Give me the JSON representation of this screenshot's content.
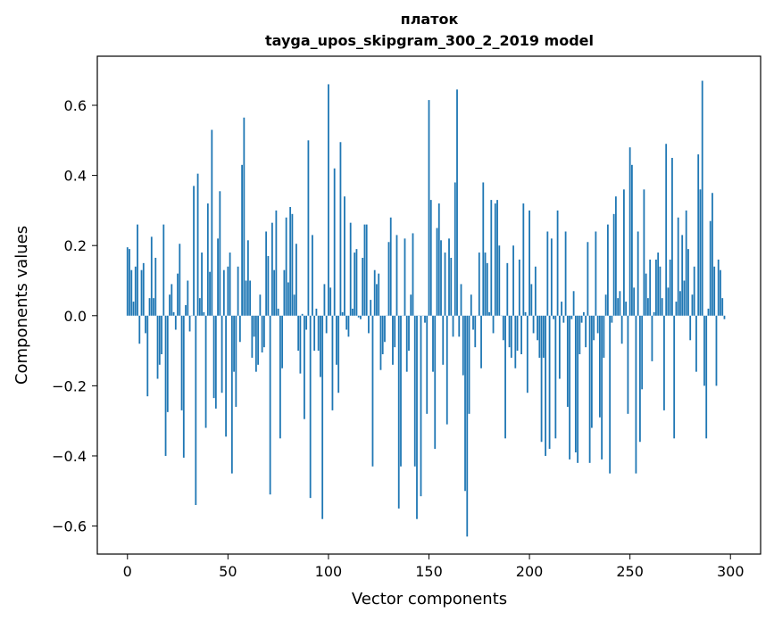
{
  "chart_data": {
    "type": "bar",
    "title": "платок",
    "subtitle": "tayga_upos_skipgram_300_2_2019 model",
    "xlabel": "Vector components",
    "ylabel": "Components values",
    "xlim": [
      -15,
      315
    ],
    "ylim": [
      -0.68,
      0.74
    ],
    "bar_color": "#1f77b4",
    "x_ticks": [
      {
        "value": 0,
        "label": "0"
      },
      {
        "value": 50,
        "label": "50"
      },
      {
        "value": 100,
        "label": "100"
      },
      {
        "value": 150,
        "label": "150"
      },
      {
        "value": 200,
        "label": "200"
      },
      {
        "value": 250,
        "label": "250"
      },
      {
        "value": 300,
        "label": "300"
      }
    ],
    "y_ticks": [
      {
        "value": -0.6,
        "label": "−0.6"
      },
      {
        "value": -0.4,
        "label": "−0.4"
      },
      {
        "value": -0.2,
        "label": "−0.2"
      },
      {
        "value": 0.0,
        "label": "0.0"
      },
      {
        "value": 0.2,
        "label": "0.2"
      },
      {
        "value": 0.4,
        "label": "0.4"
      },
      {
        "value": 0.6,
        "label": "0.6"
      }
    ],
    "values": [
      0.195,
      0.19,
      0.13,
      0.04,
      0.14,
      0.26,
      -0.08,
      0.13,
      0.15,
      -0.05,
      -0.23,
      0.05,
      0.225,
      0.05,
      0.165,
      -0.18,
      -0.14,
      -0.11,
      0.26,
      -0.4,
      -0.275,
      0.06,
      0.09,
      0.01,
      -0.04,
      0.12,
      0.205,
      -0.27,
      -0.405,
      0.03,
      0.1,
      -0.045,
      0.0,
      0.37,
      -0.54,
      0.405,
      0.05,
      0.18,
      0.01,
      -0.32,
      0.32,
      0.125,
      0.53,
      -0.235,
      -0.265,
      0.22,
      0.355,
      -0.22,
      0.13,
      -0.345,
      0.14,
      0.18,
      -0.45,
      -0.16,
      -0.26,
      0.14,
      -0.075,
      0.43,
      0.565,
      0.1,
      0.215,
      0.1,
      -0.12,
      -0.06,
      -0.16,
      -0.14,
      0.06,
      -0.105,
      -0.09,
      0.24,
      0.17,
      -0.51,
      0.265,
      0.13,
      0.3,
      0.02,
      -0.35,
      -0.15,
      0.13,
      0.28,
      0.095,
      0.31,
      0.29,
      0.06,
      0.205,
      -0.1,
      -0.165,
      0.005,
      -0.295,
      -0.04,
      0.5,
      -0.52,
      0.23,
      -0.1,
      0.02,
      -0.1,
      -0.175,
      -0.58,
      0.09,
      -0.05,
      0.66,
      0.08,
      -0.27,
      0.42,
      -0.14,
      -0.22,
      0.495,
      0.01,
      0.34,
      -0.04,
      -0.06,
      0.265,
      0.02,
      0.18,
      0.19,
      -0.005,
      -0.01,
      0.165,
      0.26,
      0.26,
      -0.05,
      0.045,
      -0.43,
      0.13,
      0.09,
      0.12,
      -0.155,
      -0.11,
      -0.075,
      0.0,
      0.21,
      0.28,
      -0.14,
      -0.09,
      0.23,
      -0.55,
      -0.43,
      0.0,
      0.22,
      -0.16,
      -0.1,
      0.06,
      0.235,
      -0.43,
      -0.58,
      0.0,
      -0.515,
      0.0,
      -0.02,
      -0.28,
      0.615,
      0.33,
      -0.16,
      -0.38,
      0.25,
      0.32,
      0.215,
      -0.14,
      0.18,
      -0.31,
      0.22,
      0.165,
      -0.06,
      0.38,
      0.645,
      -0.06,
      0.09,
      -0.17,
      -0.5,
      -0.63,
      -0.28,
      0.06,
      -0.04,
      -0.09,
      0.0,
      0.18,
      -0.15,
      0.38,
      0.18,
      0.15,
      0.01,
      0.33,
      -0.05,
      0.32,
      0.33,
      0.2,
      0.0,
      -0.07,
      -0.35,
      0.15,
      -0.09,
      -0.12,
      0.2,
      -0.15,
      -0.1,
      0.16,
      -0.11,
      0.32,
      0.01,
      -0.22,
      0.3,
      0.09,
      -0.05,
      0.14,
      -0.07,
      -0.12,
      -0.36,
      -0.12,
      -0.4,
      0.24,
      -0.38,
      0.22,
      -0.01,
      -0.35,
      0.3,
      -0.18,
      0.04,
      -0.02,
      0.24,
      -0.26,
      -0.41,
      -0.01,
      0.07,
      -0.39,
      -0.42,
      -0.11,
      -0.02,
      0.01,
      -0.09,
      0.21,
      -0.42,
      -0.32,
      -0.07,
      0.24,
      -0.05,
      -0.29,
      -0.41,
      -0.12,
      0.06,
      0.26,
      -0.45,
      -0.02,
      0.29,
      0.34,
      0.05,
      0.07,
      -0.08,
      0.36,
      0.04,
      -0.28,
      0.48,
      0.43,
      0.08,
      -0.45,
      0.24,
      -0.36,
      -0.21,
      0.36,
      0.12,
      0.05,
      0.16,
      -0.13,
      0.01,
      0.16,
      0.18,
      0.14,
      0.05,
      -0.27,
      0.49,
      0.08,
      0.16,
      0.45,
      -0.35,
      0.04,
      0.28,
      0.07,
      0.23,
      0.1,
      0.3,
      0.19,
      -0.07,
      0.06,
      0.14,
      -0.16,
      0.46,
      0.36,
      0.67,
      -0.2,
      -0.35,
      0.02,
      0.27,
      0.35,
      0.14,
      -0.2,
      0.16,
      0.13,
      0.05,
      -0.01
    ]
  }
}
